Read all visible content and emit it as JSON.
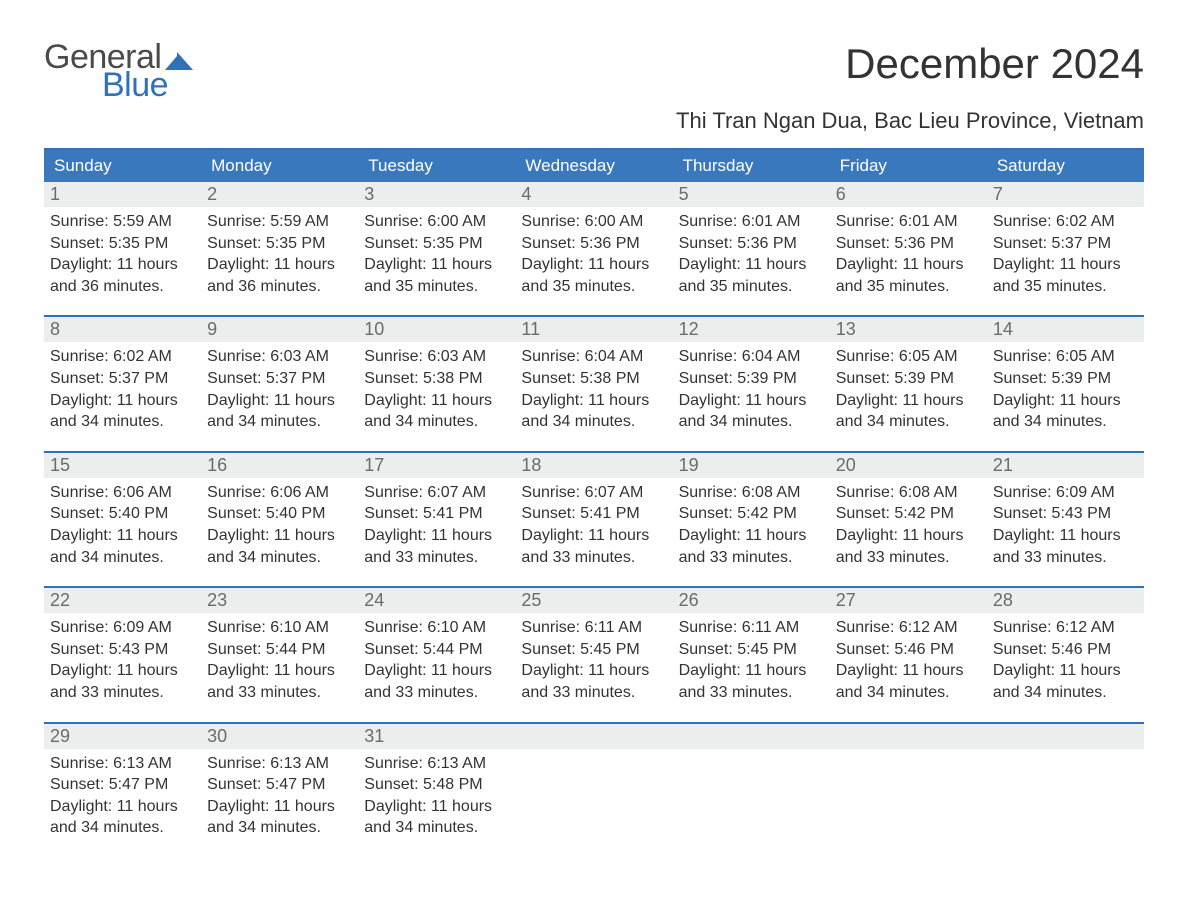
{
  "brand": {
    "part1": "General",
    "part2": "Blue",
    "text_color": "#4a4a4a",
    "accent_color": "#2f72b9"
  },
  "title": "December 2024",
  "location": "Thi Tran Ngan Dua, Bac Lieu Province, Vietnam",
  "colors": {
    "header_bg": "#3a78bd",
    "header_text": "#ffffff",
    "rule": "#2f72b9",
    "daynum_bg": "#eceded",
    "daynum_text": "#6b6b6b",
    "body_text": "#333333",
    "page_bg": "#ffffff"
  },
  "typography": {
    "title_fontsize": 42,
    "subtitle_fontsize": 22,
    "dayheader_fontsize": 17,
    "daynum_fontsize": 18,
    "body_fontsize": 16,
    "font_family": "Arial"
  },
  "day_names": [
    "Sunday",
    "Monday",
    "Tuesday",
    "Wednesday",
    "Thursday",
    "Friday",
    "Saturday"
  ],
  "weeks": [
    [
      {
        "n": "1",
        "sunrise": "5:59 AM",
        "sunset": "5:35 PM",
        "daylight": "11 hours and 36 minutes."
      },
      {
        "n": "2",
        "sunrise": "5:59 AM",
        "sunset": "5:35 PM",
        "daylight": "11 hours and 36 minutes."
      },
      {
        "n": "3",
        "sunrise": "6:00 AM",
        "sunset": "5:35 PM",
        "daylight": "11 hours and 35 minutes."
      },
      {
        "n": "4",
        "sunrise": "6:00 AM",
        "sunset": "5:36 PM",
        "daylight": "11 hours and 35 minutes."
      },
      {
        "n": "5",
        "sunrise": "6:01 AM",
        "sunset": "5:36 PM",
        "daylight": "11 hours and 35 minutes."
      },
      {
        "n": "6",
        "sunrise": "6:01 AM",
        "sunset": "5:36 PM",
        "daylight": "11 hours and 35 minutes."
      },
      {
        "n": "7",
        "sunrise": "6:02 AM",
        "sunset": "5:37 PM",
        "daylight": "11 hours and 35 minutes."
      }
    ],
    [
      {
        "n": "8",
        "sunrise": "6:02 AM",
        "sunset": "5:37 PM",
        "daylight": "11 hours and 34 minutes."
      },
      {
        "n": "9",
        "sunrise": "6:03 AM",
        "sunset": "5:37 PM",
        "daylight": "11 hours and 34 minutes."
      },
      {
        "n": "10",
        "sunrise": "6:03 AM",
        "sunset": "5:38 PM",
        "daylight": "11 hours and 34 minutes."
      },
      {
        "n": "11",
        "sunrise": "6:04 AM",
        "sunset": "5:38 PM",
        "daylight": "11 hours and 34 minutes."
      },
      {
        "n": "12",
        "sunrise": "6:04 AM",
        "sunset": "5:39 PM",
        "daylight": "11 hours and 34 minutes."
      },
      {
        "n": "13",
        "sunrise": "6:05 AM",
        "sunset": "5:39 PM",
        "daylight": "11 hours and 34 minutes."
      },
      {
        "n": "14",
        "sunrise": "6:05 AM",
        "sunset": "5:39 PM",
        "daylight": "11 hours and 34 minutes."
      }
    ],
    [
      {
        "n": "15",
        "sunrise": "6:06 AM",
        "sunset": "5:40 PM",
        "daylight": "11 hours and 34 minutes."
      },
      {
        "n": "16",
        "sunrise": "6:06 AM",
        "sunset": "5:40 PM",
        "daylight": "11 hours and 34 minutes."
      },
      {
        "n": "17",
        "sunrise": "6:07 AM",
        "sunset": "5:41 PM",
        "daylight": "11 hours and 33 minutes."
      },
      {
        "n": "18",
        "sunrise": "6:07 AM",
        "sunset": "5:41 PM",
        "daylight": "11 hours and 33 minutes."
      },
      {
        "n": "19",
        "sunrise": "6:08 AM",
        "sunset": "5:42 PM",
        "daylight": "11 hours and 33 minutes."
      },
      {
        "n": "20",
        "sunrise": "6:08 AM",
        "sunset": "5:42 PM",
        "daylight": "11 hours and 33 minutes."
      },
      {
        "n": "21",
        "sunrise": "6:09 AM",
        "sunset": "5:43 PM",
        "daylight": "11 hours and 33 minutes."
      }
    ],
    [
      {
        "n": "22",
        "sunrise": "6:09 AM",
        "sunset": "5:43 PM",
        "daylight": "11 hours and 33 minutes."
      },
      {
        "n": "23",
        "sunrise": "6:10 AM",
        "sunset": "5:44 PM",
        "daylight": "11 hours and 33 minutes."
      },
      {
        "n": "24",
        "sunrise": "6:10 AM",
        "sunset": "5:44 PM",
        "daylight": "11 hours and 33 minutes."
      },
      {
        "n": "25",
        "sunrise": "6:11 AM",
        "sunset": "5:45 PM",
        "daylight": "11 hours and 33 minutes."
      },
      {
        "n": "26",
        "sunrise": "6:11 AM",
        "sunset": "5:45 PM",
        "daylight": "11 hours and 33 minutes."
      },
      {
        "n": "27",
        "sunrise": "6:12 AM",
        "sunset": "5:46 PM",
        "daylight": "11 hours and 34 minutes."
      },
      {
        "n": "28",
        "sunrise": "6:12 AM",
        "sunset": "5:46 PM",
        "daylight": "11 hours and 34 minutes."
      }
    ],
    [
      {
        "n": "29",
        "sunrise": "6:13 AM",
        "sunset": "5:47 PM",
        "daylight": "11 hours and 34 minutes."
      },
      {
        "n": "30",
        "sunrise": "6:13 AM",
        "sunset": "5:47 PM",
        "daylight": "11 hours and 34 minutes."
      },
      {
        "n": "31",
        "sunrise": "6:13 AM",
        "sunset": "5:48 PM",
        "daylight": "11 hours and 34 minutes."
      },
      null,
      null,
      null,
      null
    ]
  ],
  "labels": {
    "sunrise": "Sunrise:",
    "sunset": "Sunset:",
    "daylight": "Daylight:"
  }
}
